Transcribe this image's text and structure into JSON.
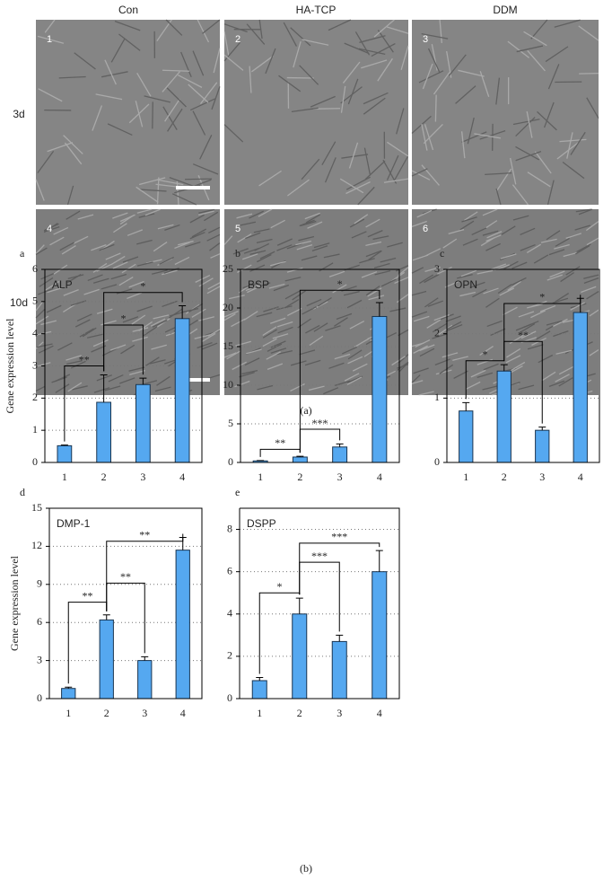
{
  "figure_a": {
    "columns": [
      "Con",
      "HA-TCP",
      "DDM"
    ],
    "rows": [
      "3d",
      "10d"
    ],
    "panels": [
      "1",
      "2",
      "3",
      "4",
      "5",
      "6"
    ],
    "caption": "(a)"
  },
  "caption_b": "(b)",
  "chart_data": [
    {
      "type": "bar",
      "label": "a",
      "title": "ALP",
      "y_label": "Gene expression level",
      "categories": [
        "1",
        "2",
        "3",
        "4"
      ],
      "values": [
        0.52,
        1.87,
        2.42,
        4.47
      ],
      "errors": [
        0.02,
        0.85,
        0.2,
        0.4
      ],
      "color": "#55a8f0",
      "ylim": [
        0,
        6
      ],
      "yticks": [
        0,
        1,
        2,
        3,
        4,
        5,
        6
      ],
      "grid": true,
      "brackets": [
        {
          "from": "1",
          "to": "2",
          "y": 3.0,
          "label": "**"
        },
        {
          "from": "2",
          "to": "3",
          "y": 4.27,
          "label": "*"
        },
        {
          "from": "2",
          "to": "4",
          "y": 5.28,
          "label": "*"
        }
      ]
    },
    {
      "type": "bar",
      "label": "b",
      "title": "BSP",
      "categories": [
        "1",
        "2",
        "3",
        "4"
      ],
      "values": [
        0.2,
        0.7,
        2.0,
        18.9
      ],
      "errors": [
        0.05,
        0.1,
        0.4,
        1.8
      ],
      "color": "#55a8f0",
      "ylim": [
        0,
        25
      ],
      "yticks": [
        0,
        5,
        10,
        15,
        20,
        25
      ],
      "grid": true,
      "brackets": [
        {
          "from": "1",
          "to": "2",
          "y": 1.7,
          "label": "**"
        },
        {
          "from": "2",
          "to": "3",
          "y": 4.3,
          "label": "***"
        },
        {
          "from": "2",
          "to": "4",
          "y": 22.3,
          "label": "*"
        }
      ]
    },
    {
      "type": "bar",
      "label": "c",
      "title": "OPN",
      "categories": [
        "1",
        "2",
        "3",
        "4"
      ],
      "values": [
        0.8,
        1.42,
        0.5,
        2.33
      ],
      "errors": [
        0.13,
        0.1,
        0.05,
        0.22
      ],
      "color": "#55a8f0",
      "ylim": [
        0,
        3
      ],
      "yticks": [
        0,
        1,
        2,
        3
      ],
      "grid": true,
      "brackets": [
        {
          "from": "1",
          "to": "2",
          "y": 1.58,
          "label": "*"
        },
        {
          "from": "2",
          "to": "3",
          "y": 1.88,
          "label": "**"
        },
        {
          "from": "2",
          "to": "4",
          "y": 2.47,
          "label": "*"
        }
      ]
    },
    {
      "type": "bar",
      "label": "d",
      "title": "DMP-1",
      "y_label": "Gene expression level",
      "categories": [
        "1",
        "2",
        "3",
        "4"
      ],
      "values": [
        0.8,
        6.2,
        3.0,
        11.7
      ],
      "errors": [
        0.1,
        0.4,
        0.3,
        1.0
      ],
      "color": "#55a8f0",
      "ylim": [
        0,
        15
      ],
      "yticks": [
        0,
        3,
        6,
        9,
        12,
        15
      ],
      "grid": true,
      "brackets": [
        {
          "from": "1",
          "to": "2",
          "y": 7.6,
          "label": "**"
        },
        {
          "from": "2",
          "to": "3",
          "y": 9.1,
          "label": "**"
        },
        {
          "from": "2",
          "to": "4",
          "y": 12.4,
          "label": "**"
        }
      ]
    },
    {
      "type": "bar",
      "label": "e",
      "title": "DSPP",
      "categories": [
        "1",
        "2",
        "3",
        "4"
      ],
      "values": [
        0.85,
        4.0,
        2.7,
        6.0
      ],
      "errors": [
        0.15,
        0.75,
        0.3,
        1.0
      ],
      "color": "#55a8f0",
      "ylim": [
        0,
        9
      ],
      "yticks": [
        0,
        2,
        4,
        6,
        8
      ],
      "grid": true,
      "brackets": [
        {
          "from": "1",
          "to": "2",
          "y": 5.0,
          "label": "*"
        },
        {
          "from": "2",
          "to": "3",
          "y": 6.45,
          "label": "***"
        },
        {
          "from": "2",
          "to": "4",
          "y": 7.35,
          "label": "***"
        }
      ]
    }
  ]
}
